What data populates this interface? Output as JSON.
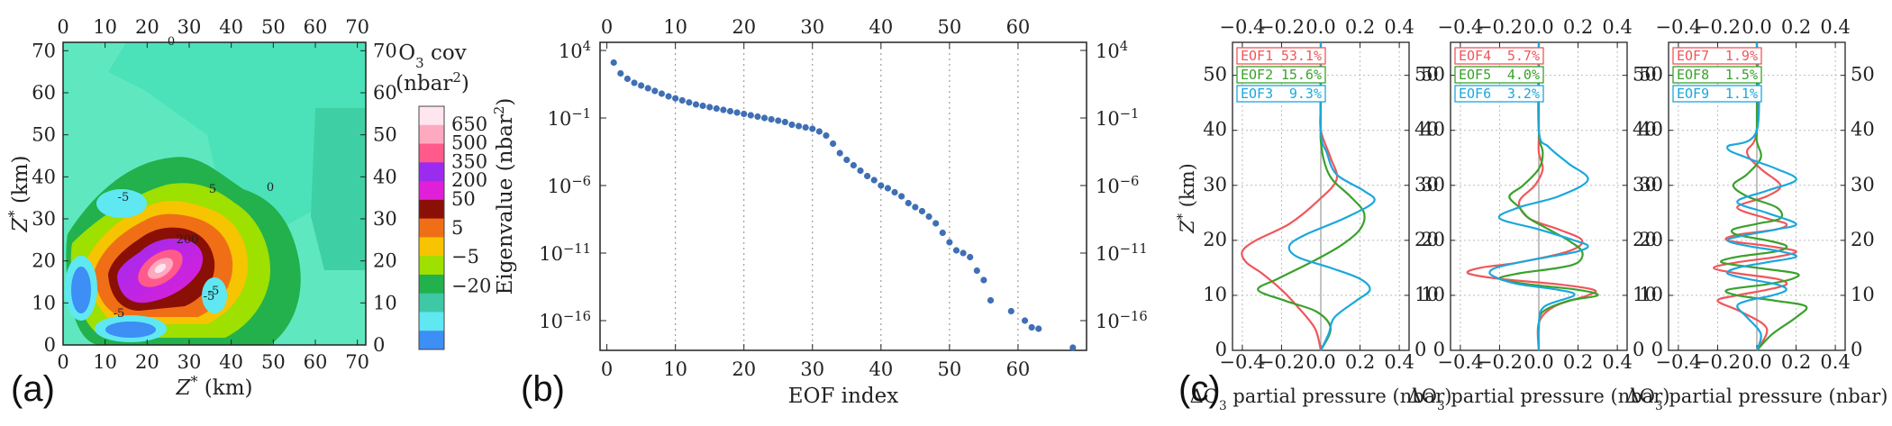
{
  "panels": {
    "a": "(a)",
    "b": "(b)",
    "c": "(c)"
  },
  "chart_data": [
    {
      "type": "heatmap",
      "id": "panel-a",
      "xlabel": "Z* (km)",
      "ylabel": "Z* (km)",
      "xlim": [
        0,
        72
      ],
      "ylim": [
        0,
        72
      ],
      "xticks": [
        0,
        10,
        20,
        30,
        40,
        50,
        60,
        70
      ],
      "yticks": [
        0,
        10,
        20,
        30,
        40,
        50,
        60,
        70
      ],
      "colorbar": {
        "title_line1": "O3 cov",
        "title_line2": "(nbar2)",
        "levels": [
          -20,
          -5,
          5,
          50,
          200,
          350,
          500,
          650
        ],
        "tick_labels": [
          "650",
          "500",
          "350",
          "200",
          "50",
          "5",
          "−5",
          "−20"
        ],
        "colors": [
          "#3d8ef5",
          "#5fe8f2",
          "#3ec8a6",
          "#22b14c",
          "#9ee000",
          "#f6c400",
          "#f06f16",
          "#8a0f05",
          "#e01fd8",
          "#9b2bef",
          "#ff5a8a",
          "#ffa9c0",
          "#ffe6ee"
        ]
      },
      "contour_labels": [
        "-5",
        "-5",
        "-5",
        "200",
        "5",
        "-5",
        "0",
        "0"
      ]
    },
    {
      "type": "scatter",
      "id": "panel-b",
      "xlabel": "EOF index",
      "ylabel": "Eigenvalue (nbar2)",
      "xlim": [
        -1,
        70
      ],
      "ylog_exp_range": [
        -18.2,
        4.6
      ],
      "xticks": [
        0,
        10,
        20,
        30,
        40,
        50,
        60
      ],
      "ytick_exps": [
        4,
        -1,
        -6,
        -11,
        -16
      ],
      "ytick_labels": [
        "10^4",
        "10^-1",
        "10^-6",
        "10^-11",
        "10^-16"
      ],
      "x": [
        1,
        2,
        3,
        4,
        5,
        6,
        7,
        8,
        9,
        10,
        11,
        12,
        13,
        14,
        15,
        16,
        17,
        18,
        19,
        20,
        21,
        22,
        23,
        24,
        25,
        26,
        27,
        28,
        29,
        30,
        31,
        32,
        33,
        34,
        35,
        36,
        37,
        38,
        39,
        40,
        41,
        42,
        43,
        44,
        45,
        46,
        47,
        48,
        49,
        50,
        51,
        52,
        53,
        54,
        55,
        56,
        59,
        61,
        62,
        63,
        68
      ],
      "log10_y": [
        3.1,
        2.3,
        1.9,
        1.6,
        1.4,
        1.2,
        1.0,
        0.8,
        0.6,
        0.45,
        0.3,
        0.15,
        0.0,
        -0.1,
        -0.2,
        -0.3,
        -0.4,
        -0.5,
        -0.6,
        -0.7,
        -0.8,
        -0.9,
        -1.0,
        -1.1,
        -1.2,
        -1.3,
        -1.5,
        -1.6,
        -1.7,
        -1.8,
        -2.0,
        -2.3,
        -2.9,
        -3.6,
        -4.1,
        -4.5,
        -4.9,
        -5.3,
        -5.6,
        -6.0,
        -6.2,
        -6.5,
        -6.8,
        -7.3,
        -7.6,
        -7.9,
        -8.3,
        -8.8,
        -9.5,
        -10.2,
        -10.8,
        -11.0,
        -11.3,
        -12.3,
        -13.0,
        -14.5,
        -15.3,
        -16.0,
        -16.5,
        -16.6,
        -18.0
      ]
    },
    {
      "type": "line",
      "id": "panel-c",
      "xlabel": "ΔO3 partial pressure (nbar)",
      "ylabel": "Z* (km)",
      "xlim": [
        -0.45,
        0.45
      ],
      "ylim": [
        0,
        56
      ],
      "xticks": [
        -0.4,
        -0.2,
        0.0,
        0.2,
        0.4
      ],
      "xtick_labels": [
        "−0.4",
        "−0.2",
        "0.0",
        "0.2",
        "0.4"
      ],
      "yticks": [
        0,
        10,
        20,
        30,
        40,
        50
      ],
      "subplots": [
        {
          "legend": [
            {
              "name": "EOF1",
              "pct": "53.1%",
              "color": "#f0565a"
            },
            {
              "name": "EOF2",
              "pct": "15.6%",
              "color": "#3aa12c"
            },
            {
              "name": "EOF3",
              "pct": "9.3%",
              "color": "#1ba7dd"
            }
          ],
          "series": [
            {
              "color": "#f0565a",
              "z": [
                0,
                4,
                8,
                11,
                14,
                16,
                18,
                20,
                23,
                27,
                31,
                35,
                40,
                45,
                56
              ],
              "v": [
                0.0,
                -0.03,
                -0.12,
                -0.2,
                -0.3,
                -0.38,
                -0.4,
                -0.33,
                -0.16,
                -0.02,
                0.08,
                0.05,
                0.0,
                0.0,
                0.0
              ]
            },
            {
              "color": "#3aa12c",
              "z": [
                0,
                4,
                7,
                9,
                11,
                13,
                16,
                19,
                22,
                25,
                28,
                31,
                34,
                38,
                42,
                56
              ],
              "v": [
                0.0,
                0.05,
                -0.02,
                -0.18,
                -0.32,
                -0.22,
                -0.05,
                0.1,
                0.2,
                0.22,
                0.15,
                0.06,
                0.02,
                0.0,
                0.0,
                0.0
              ]
            },
            {
              "color": "#1ba7dd",
              "z": [
                0,
                3,
                6,
                9,
                11,
                13,
                15,
                17,
                19,
                21,
                24,
                27,
                29,
                32,
                36,
                40,
                56
              ],
              "v": [
                0.0,
                0.04,
                0.07,
                0.18,
                0.25,
                0.2,
                0.05,
                -0.12,
                -0.16,
                -0.08,
                0.12,
                0.27,
                0.22,
                0.08,
                0.03,
                0.0,
                0.0
              ]
            }
          ]
        },
        {
          "legend": [
            {
              "name": "EOF4",
              "pct": "5.7%",
              "color": "#f0565a"
            },
            {
              "name": "EOF5",
              "pct": "4.0%",
              "color": "#3aa12c"
            },
            {
              "name": "EOF6",
              "pct": "3.2%",
              "color": "#1ba7dd"
            }
          ],
          "series": [
            {
              "color": "#f0565a",
              "z": [
                0,
                5,
                8,
                10,
                11,
                12,
                13,
                14,
                15,
                16,
                18,
                20,
                22,
                24,
                27,
                30,
                33,
                36,
                40,
                56
              ],
              "v": [
                0.0,
                0.0,
                0.08,
                0.25,
                0.28,
                0.1,
                -0.2,
                -0.36,
                -0.3,
                -0.1,
                0.15,
                0.22,
                0.1,
                -0.05,
                -0.1,
                -0.02,
                0.02,
                0.0,
                0.0,
                0.0
              ]
            },
            {
              "color": "#3aa12c",
              "z": [
                0,
                4,
                7,
                9,
                10,
                11,
                12,
                13,
                14,
                15,
                16,
                18,
                20,
                22,
                24,
                26,
                28,
                30,
                33,
                36,
                40,
                56
              ],
              "v": [
                0.0,
                0.0,
                0.02,
                0.15,
                0.3,
                0.2,
                -0.05,
                -0.2,
                -0.1,
                0.1,
                0.2,
                0.22,
                0.15,
                0.05,
                -0.05,
                -0.1,
                -0.15,
                -0.08,
                0.0,
                0.02,
                0.0,
                0.0
              ]
            },
            {
              "color": "#1ba7dd",
              "z": [
                0,
                5,
                8,
                10,
                11,
                12,
                13,
                14,
                15,
                16,
                17,
                18,
                19,
                20,
                22,
                24,
                26,
                28,
                31,
                34,
                37,
                40,
                56
              ],
              "v": [
                0.0,
                0.0,
                0.03,
                0.18,
                0.1,
                -0.1,
                -0.2,
                -0.25,
                -0.22,
                -0.1,
                0.05,
                0.2,
                0.25,
                0.18,
                0.0,
                -0.2,
                -0.1,
                0.1,
                0.25,
                0.15,
                0.05,
                0.0,
                0.0
              ]
            }
          ]
        },
        {
          "legend": [
            {
              "name": "EOF7",
              "pct": "1.9%",
              "color": "#f0565a"
            },
            {
              "name": "EOF8",
              "pct": "1.5%",
              "color": "#3aa12c"
            },
            {
              "name": "EOF9",
              "pct": "1.1%",
              "color": "#1ba7dd"
            }
          ],
          "series": [
            {
              "color": "#f0565a",
              "z": [
                0,
                4,
                7,
                9,
                10,
                11,
                12,
                13,
                14,
                15,
                16,
                17,
                18,
                19,
                20,
                21,
                22,
                23,
                24,
                26,
                28,
                30,
                33,
                36,
                40,
                56
              ],
              "v": [
                0.0,
                0.05,
                -0.08,
                -0.2,
                -0.1,
                0.05,
                0.15,
                0.1,
                -0.1,
                -0.22,
                -0.1,
                0.1,
                0.2,
                0.05,
                -0.15,
                -0.1,
                0.1,
                0.15,
                0.05,
                -0.1,
                0.05,
                0.12,
                0.02,
                -0.05,
                0.0,
                0.0
              ]
            },
            {
              "color": "#3aa12c",
              "z": [
                0,
                3,
                6,
                8,
                9,
                10,
                11,
                12,
                13,
                14,
                15,
                16,
                17,
                18,
                19,
                20,
                21,
                22,
                23,
                24,
                26,
                28,
                30,
                32,
                35,
                38,
                41,
                56
              ],
              "v": [
                0.0,
                0.08,
                0.2,
                0.25,
                0.1,
                -0.1,
                -0.15,
                0.05,
                0.18,
                0.2,
                0.0,
                -0.18,
                -0.1,
                0.1,
                0.15,
                0.05,
                -0.1,
                -0.12,
                0.0,
                0.12,
                0.1,
                -0.05,
                -0.12,
                -0.05,
                0.02,
                0.0,
                0.0,
                0.0
              ]
            },
            {
              "color": "#1ba7dd",
              "z": [
                0,
                3,
                6,
                8,
                9,
                10,
                11,
                12,
                13,
                14,
                15,
                16,
                17,
                18,
                19,
                20,
                21,
                22,
                23,
                25,
                27,
                29,
                31,
                33,
                35,
                37,
                40,
                56
              ],
              "v": [
                0.0,
                0.02,
                -0.05,
                -0.1,
                -0.05,
                0.08,
                0.15,
                0.1,
                -0.05,
                -0.15,
                -0.1,
                0.05,
                0.2,
                0.12,
                -0.05,
                -0.15,
                -0.05,
                0.1,
                0.2,
                0.05,
                -0.1,
                0.05,
                0.2,
                0.1,
                -0.05,
                -0.15,
                0.0,
                0.0
              ]
            }
          ]
        }
      ]
    }
  ]
}
